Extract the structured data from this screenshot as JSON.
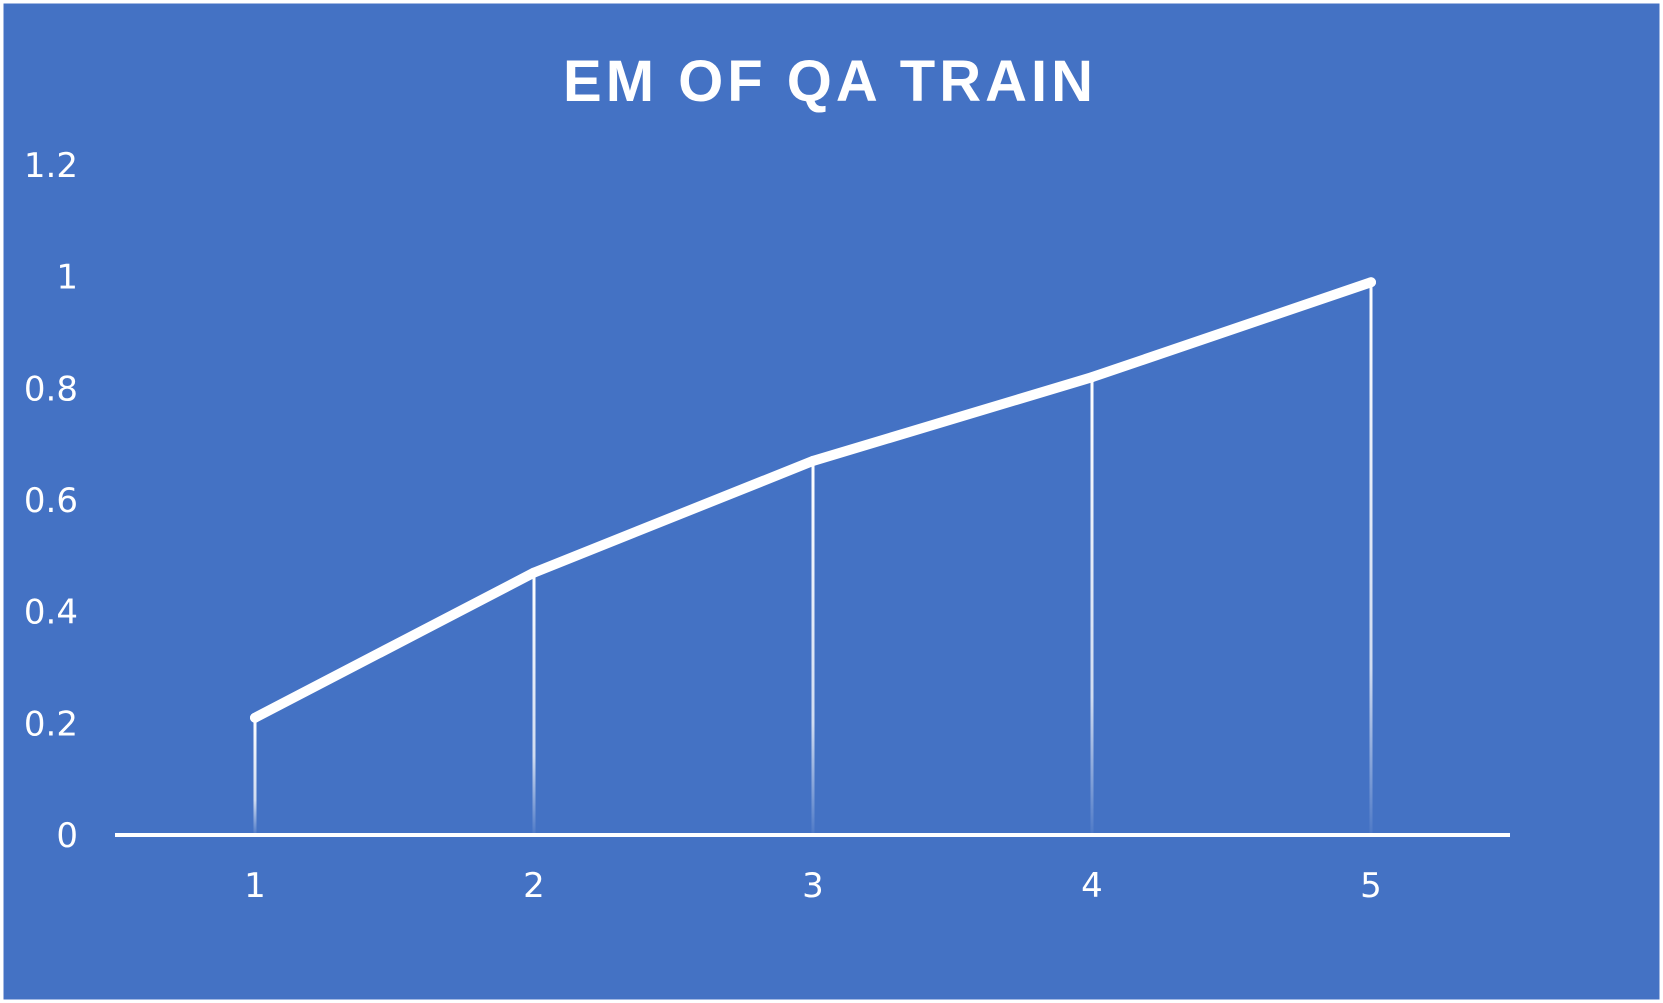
{
  "colors": {
    "background": "#4472C4",
    "line": "#ffffff",
    "border": "#ffffff"
  },
  "chart_data": {
    "type": "line",
    "title": "EM OF QA TRAIN",
    "x": [
      1,
      2,
      3,
      4,
      5
    ],
    "categories": [
      "1",
      "2",
      "3",
      "4",
      "5"
    ],
    "series": [
      {
        "values": [
          0.21,
          0.47,
          0.67,
          0.82,
          0.99
        ]
      }
    ],
    "xlabel": "",
    "ylabel": "",
    "ylim": [
      0,
      1.2
    ],
    "yticks": [
      0,
      0.2,
      0.4,
      0.6,
      0.8,
      1,
      1.2
    ],
    "ytick_labels": [
      "0",
      "0.2",
      "0.4",
      "0.6",
      "0.8",
      "1",
      "1.2"
    ],
    "drop_lines": true,
    "grid": false,
    "legend": "none"
  }
}
